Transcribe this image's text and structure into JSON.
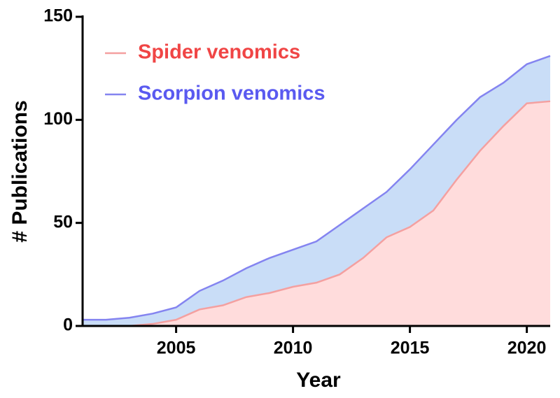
{
  "chart_data": {
    "type": "area",
    "x_label": "Year",
    "y_label": "# Publications",
    "x": [
      2001,
      2002,
      2003,
      2004,
      2005,
      2006,
      2007,
      2008,
      2009,
      2010,
      2011,
      2012,
      2013,
      2014,
      2015,
      2016,
      2017,
      2018,
      2019,
      2020,
      2021
    ],
    "series": [
      {
        "name": "Scorpion venomics",
        "color": "#8484f0",
        "fill": "#c9ddf7",
        "label_color": "#5a5af0",
        "values": [
          3,
          3,
          4,
          6,
          9,
          17,
          22,
          28,
          33,
          37,
          41,
          49,
          57,
          65,
          76,
          88,
          100,
          111,
          118,
          127,
          131
        ]
      },
      {
        "name": "Spider venomics",
        "color": "#f4a0a0",
        "fill": "#ffdcdc",
        "label_color": "#f04545",
        "values": [
          0,
          0,
          0,
          1,
          3,
          8,
          10,
          14,
          16,
          19,
          21,
          25,
          33,
          43,
          48,
          56,
          71,
          85,
          97,
          108,
          109
        ]
      }
    ],
    "xlim": [
      2001,
      2021
    ],
    "xticks": [
      2005,
      2010,
      2015,
      2020
    ],
    "ylim": [
      0,
      150
    ],
    "yticks": [
      0,
      50,
      100,
      150
    ],
    "legend": "top-left"
  }
}
